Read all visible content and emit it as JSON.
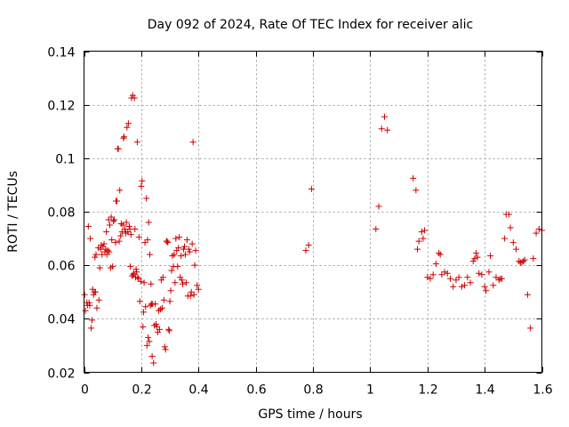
{
  "chart_data": {
    "type": "scatter",
    "title": "Day 092 of 2024, Rate Of TEC Index for receiver alic",
    "xlabel": "GPS time / hours",
    "ylabel": "ROTI / TECUs",
    "xlim": [
      0,
      1.6
    ],
    "ylim": [
      0.02,
      0.14
    ],
    "xticks": [
      0,
      0.2,
      0.4,
      0.6,
      0.8,
      1,
      1.2,
      1.4,
      1.6
    ],
    "xtick_labels": [
      "0",
      "0.2",
      "0.4",
      "0.6",
      "0.8",
      "1",
      "1.2",
      "1.4",
      "1.6"
    ],
    "yticks": [
      0.02,
      0.04,
      0.06,
      0.08,
      0.1,
      0.12,
      0.14
    ],
    "ytick_labels": [
      "0.02",
      "0.04",
      "0.06",
      "0.08",
      "0.1",
      "0.12",
      "0.14"
    ],
    "grid": true,
    "marker": "+",
    "color": "#cc0000",
    "series": [
      {
        "name": "ROTI",
        "points": [
          [
            0.002,
            0.049
          ],
          [
            0.005,
            0.043
          ],
          [
            0.01,
            0.046
          ],
          [
            0.012,
            0.045
          ],
          [
            0.015,
            0.0745
          ],
          [
            0.018,
            0.046
          ],
          [
            0.02,
            0.045
          ],
          [
            0.022,
            0.07
          ],
          [
            0.025,
            0.0365
          ],
          [
            0.028,
            0.0395
          ],
          [
            0.03,
            0.051
          ],
          [
            0.033,
            0.049
          ],
          [
            0.036,
            0.05
          ],
          [
            0.038,
            0.063
          ],
          [
            0.04,
            0.05
          ],
          [
            0.042,
            0.064
          ],
          [
            0.045,
            0.044
          ],
          [
            0.05,
            0.0665
          ],
          [
            0.052,
            0.047
          ],
          [
            0.055,
            0.059
          ],
          [
            0.058,
            0.066
          ],
          [
            0.06,
            0.0675
          ],
          [
            0.063,
            0.064
          ],
          [
            0.066,
            0.067
          ],
          [
            0.07,
            0.068
          ],
          [
            0.073,
            0.065
          ],
          [
            0.076,
            0.066
          ],
          [
            0.078,
            0.0725
          ],
          [
            0.08,
            0.064
          ],
          [
            0.083,
            0.0655
          ],
          [
            0.086,
            0.077
          ],
          [
            0.088,
            0.065
          ],
          [
            0.09,
            0.075
          ],
          [
            0.093,
            0.059
          ],
          [
            0.095,
            0.078
          ],
          [
            0.097,
            0.0695
          ],
          [
            0.1,
            0.0595
          ],
          [
            0.103,
            0.0765
          ],
          [
            0.106,
            0.077
          ],
          [
            0.11,
            0.0685
          ],
          [
            0.112,
            0.084
          ],
          [
            0.115,
            0.084
          ],
          [
            0.118,
            0.1035
          ],
          [
            0.12,
            0.1035
          ],
          [
            0.123,
            0.069
          ],
          [
            0.125,
            0.088
          ],
          [
            0.128,
            0.071
          ],
          [
            0.13,
            0.0755
          ],
          [
            0.133,
            0.0725
          ],
          [
            0.136,
            0.075
          ],
          [
            0.138,
            0.1075
          ],
          [
            0.14,
            0.108
          ],
          [
            0.143,
            0.0735
          ],
          [
            0.146,
            0.072
          ],
          [
            0.148,
            0.076
          ],
          [
            0.15,
            0.1115
          ],
          [
            0.153,
            0.0725
          ],
          [
            0.155,
            0.113
          ],
          [
            0.158,
            0.0745
          ],
          [
            0.16,
            0.0735
          ],
          [
            0.162,
            0.0595
          ],
          [
            0.164,
            0.0715
          ],
          [
            0.166,
            0.1225
          ],
          [
            0.168,
            0.056
          ],
          [
            0.17,
            0.1235
          ],
          [
            0.172,
            0.0565
          ],
          [
            0.174,
            0.057
          ],
          [
            0.176,
            0.1225
          ],
          [
            0.178,
            0.0735
          ],
          [
            0.18,
            0.0555
          ],
          [
            0.182,
            0.0585
          ],
          [
            0.184,
            0.0575
          ],
          [
            0.186,
            0.106
          ],
          [
            0.188,
            0.0555
          ],
          [
            0.19,
            0.055
          ],
          [
            0.192,
            0.0705
          ],
          [
            0.195,
            0.0465
          ],
          [
            0.198,
            0.054
          ],
          [
            0.2,
            0.0895
          ],
          [
            0.203,
            0.0915
          ],
          [
            0.206,
            0.037
          ],
          [
            0.208,
            0.0425
          ],
          [
            0.21,
            0.0535
          ],
          [
            0.213,
            0.0685
          ],
          [
            0.215,
            0.0445
          ],
          [
            0.218,
            0.085
          ],
          [
            0.22,
            0.03
          ],
          [
            0.222,
            0.0695
          ],
          [
            0.224,
            0.033
          ],
          [
            0.226,
            0.076
          ],
          [
            0.228,
            0.0315
          ],
          [
            0.23,
            0.064
          ],
          [
            0.232,
            0.045
          ],
          [
            0.234,
            0.053
          ],
          [
            0.236,
            0.0455
          ],
          [
            0.238,
            0.026
          ],
          [
            0.24,
            0.0455
          ],
          [
            0.243,
            0.0235
          ],
          [
            0.246,
            0.0375
          ],
          [
            0.249,
            0.0455
          ],
          [
            0.252,
            0.038
          ],
          [
            0.255,
            0.037
          ],
          [
            0.258,
            0.035
          ],
          [
            0.261,
            0.043
          ],
          [
            0.264,
            0.036
          ],
          [
            0.267,
            0.0435
          ],
          [
            0.27,
            0.0545
          ],
          [
            0.273,
            0.044
          ],
          [
            0.276,
            0.0555
          ],
          [
            0.279,
            0.047
          ],
          [
            0.282,
            0.0295
          ],
          [
            0.285,
            0.0285
          ],
          [
            0.288,
            0.069
          ],
          [
            0.29,
            0.069
          ],
          [
            0.293,
            0.0685
          ],
          [
            0.296,
            0.036
          ],
          [
            0.298,
            0.0355
          ],
          [
            0.3,
            0.0465
          ],
          [
            0.303,
            0.0505
          ],
          [
            0.306,
            0.058
          ],
          [
            0.309,
            0.0635
          ],
          [
            0.312,
            0.0595
          ],
          [
            0.315,
            0.064
          ],
          [
            0.318,
            0.0535
          ],
          [
            0.321,
            0.07
          ],
          [
            0.324,
            0.0655
          ],
          [
            0.327,
            0.0595
          ],
          [
            0.33,
            0.0665
          ],
          [
            0.333,
            0.0705
          ],
          [
            0.336,
            0.0555
          ],
          [
            0.339,
            0.0635
          ],
          [
            0.342,
            0.0545
          ],
          [
            0.345,
            0.053
          ],
          [
            0.348,
            0.066
          ],
          [
            0.351,
            0.067
          ],
          [
            0.354,
            0.064
          ],
          [
            0.357,
            0.0535
          ],
          [
            0.36,
            0.0695
          ],
          [
            0.363,
            0.0485
          ],
          [
            0.366,
            0.066
          ],
          [
            0.369,
            0.065
          ],
          [
            0.372,
            0.0485
          ],
          [
            0.375,
            0.05
          ],
          [
            0.378,
            0.068
          ],
          [
            0.381,
            0.106
          ],
          [
            0.384,
            0.049
          ],
          [
            0.387,
            0.06
          ],
          [
            0.39,
            0.0655
          ],
          [
            0.395,
            0.0525
          ],
          [
            0.4,
            0.051
          ],
          [
            0.775,
            0.0655
          ],
          [
            0.785,
            0.0675
          ],
          [
            0.795,
            0.0885
          ],
          [
            1.02,
            0.0735
          ],
          [
            1.03,
            0.082
          ],
          [
            1.04,
            0.111
          ],
          [
            1.05,
            0.1155
          ],
          [
            1.06,
            0.1105
          ],
          [
            1.15,
            0.0925
          ],
          [
            1.16,
            0.088
          ],
          [
            1.165,
            0.066
          ],
          [
            1.17,
            0.069
          ],
          [
            1.18,
            0.0725
          ],
          [
            1.185,
            0.07
          ],
          [
            1.19,
            0.073
          ],
          [
            1.2,
            0.0555
          ],
          [
            1.21,
            0.055
          ],
          [
            1.22,
            0.0565
          ],
          [
            1.23,
            0.0605
          ],
          [
            1.24,
            0.0645
          ],
          [
            1.245,
            0.064
          ],
          [
            1.25,
            0.0565
          ],
          [
            1.26,
            0.0575
          ],
          [
            1.27,
            0.057
          ],
          [
            1.28,
            0.055
          ],
          [
            1.29,
            0.052
          ],
          [
            1.3,
            0.0545
          ],
          [
            1.31,
            0.0555
          ],
          [
            1.32,
            0.052
          ],
          [
            1.33,
            0.0525
          ],
          [
            1.34,
            0.0555
          ],
          [
            1.35,
            0.0535
          ],
          [
            1.36,
            0.0615
          ],
          [
            1.365,
            0.0625
          ],
          [
            1.37,
            0.0645
          ],
          [
            1.375,
            0.063
          ],
          [
            1.38,
            0.057
          ],
          [
            1.39,
            0.0565
          ],
          [
            1.4,
            0.052
          ],
          [
            1.405,
            0.0505
          ],
          [
            1.415,
            0.0575
          ],
          [
            1.42,
            0.0635
          ],
          [
            1.43,
            0.0525
          ],
          [
            1.44,
            0.0555
          ],
          [
            1.45,
            0.0545
          ],
          [
            1.455,
            0.055
          ],
          [
            1.46,
            0.055
          ],
          [
            1.47,
            0.07
          ],
          [
            1.475,
            0.079
          ],
          [
            1.485,
            0.079
          ],
          [
            1.49,
            0.074
          ],
          [
            1.5,
            0.0685
          ],
          [
            1.51,
            0.066
          ],
          [
            1.52,
            0.0615
          ],
          [
            1.525,
            0.061
          ],
          [
            1.53,
            0.061
          ],
          [
            1.535,
            0.0615
          ],
          [
            1.54,
            0.062
          ],
          [
            1.55,
            0.049
          ],
          [
            1.56,
            0.0365
          ],
          [
            1.57,
            0.0625
          ],
          [
            1.58,
            0.072
          ],
          [
            1.59,
            0.0735
          ],
          [
            1.6,
            0.073
          ]
        ]
      }
    ]
  }
}
